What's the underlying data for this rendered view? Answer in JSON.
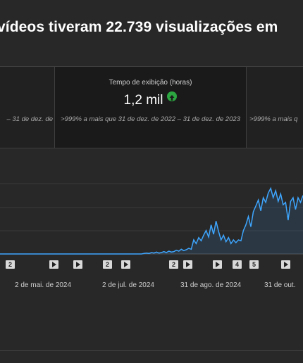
{
  "headline": "vídeos tiveram 22.739 visualizações em",
  "cards": {
    "left": {
      "compare": "– 31 de dez. de"
    },
    "middle": {
      "label": "Tempo de exibição (horas)",
      "value": "1,2 mil",
      "trend_icon": "arrow-up-icon",
      "compare": ">999% a mais que 31 de dez. de 2022 – 31 de dez. de 2023"
    },
    "right": {
      "compare": ">999% a mais q"
    }
  },
  "chart_data": {
    "type": "area",
    "x_ticks": [
      "2 de mai. de 2024",
      "2 de jul. de 2024",
      "31 de ago. de 2024",
      "31 de out."
    ],
    "series_color": "#3ea6ff",
    "grid": true,
    "values": [
      0,
      0,
      0,
      0,
      0,
      0,
      0,
      0,
      0,
      0,
      0,
      0,
      0,
      0,
      0,
      0,
      0,
      0,
      0,
      0,
      0,
      0,
      0,
      0,
      0,
      0,
      0,
      0,
      0,
      0,
      0,
      0,
      0,
      0,
      0,
      0,
      0,
      0,
      0,
      0,
      0,
      0,
      0,
      0,
      0,
      0,
      0,
      0,
      0,
      0,
      0,
      0,
      0,
      0,
      0,
      0,
      0,
      0,
      0.01,
      0.02,
      0.01,
      0.03,
      0.02,
      0.04,
      0.02,
      0.03,
      0.05,
      0.03,
      0.06,
      0.04,
      0.05,
      0.08,
      0.06,
      0.1,
      0.07,
      0.09,
      0.12,
      0.1,
      0.3,
      0.22,
      0.35,
      0.28,
      0.4,
      0.5,
      0.36,
      0.62,
      0.42,
      0.7,
      0.48,
      0.3,
      0.4,
      0.26,
      0.35,
      0.22,
      0.3,
      0.24,
      0.3,
      0.28,
      0.5,
      0.62,
      0.8,
      0.58,
      0.9,
      1.02,
      1.15,
      0.92,
      1.2,
      1.1,
      1.3,
      1.4,
      1.2,
      1.35,
      1.12,
      1.28,
      1.05,
      1.1,
      0.72,
      1.12,
      1.2,
      0.95,
      1.2,
      1.1,
      1.25
    ]
  },
  "markers": [
    "2",
    "",
    "",
    "2",
    "",
    "2",
    "",
    "",
    "4",
    "5",
    ""
  ]
}
